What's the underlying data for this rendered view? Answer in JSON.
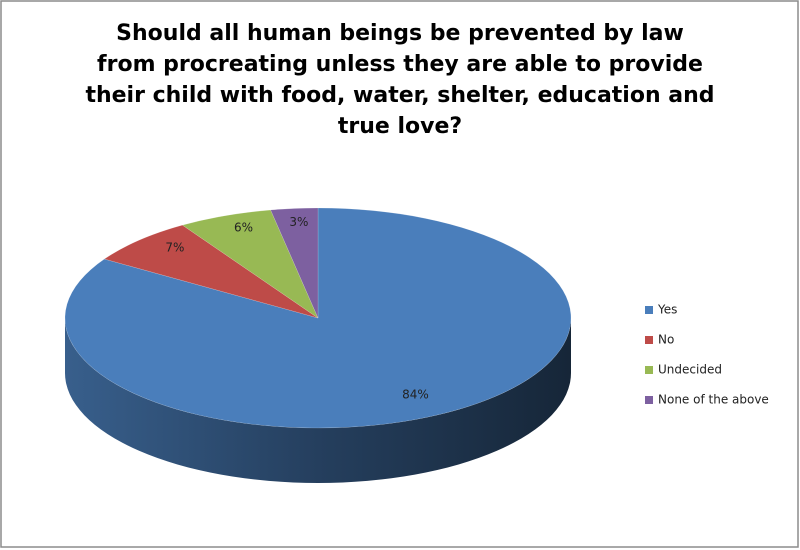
{
  "chart_data": {
    "type": "pie",
    "title": [
      "Should all human beings be prevented by law",
      "from procreating unless they are able to provide",
      "their child with food, water, shelter, education and",
      "true love?"
    ],
    "categories": [
      "Yes",
      "No",
      "Undecided",
      "None of the above"
    ],
    "values": [
      84,
      7,
      6,
      3
    ],
    "value_labels": [
      "84%",
      "7%",
      "6%",
      "3%"
    ],
    "colors": [
      "#4a7ebb",
      "#be4b48",
      "#98b954",
      "#7d60a0"
    ],
    "legend": "right"
  }
}
